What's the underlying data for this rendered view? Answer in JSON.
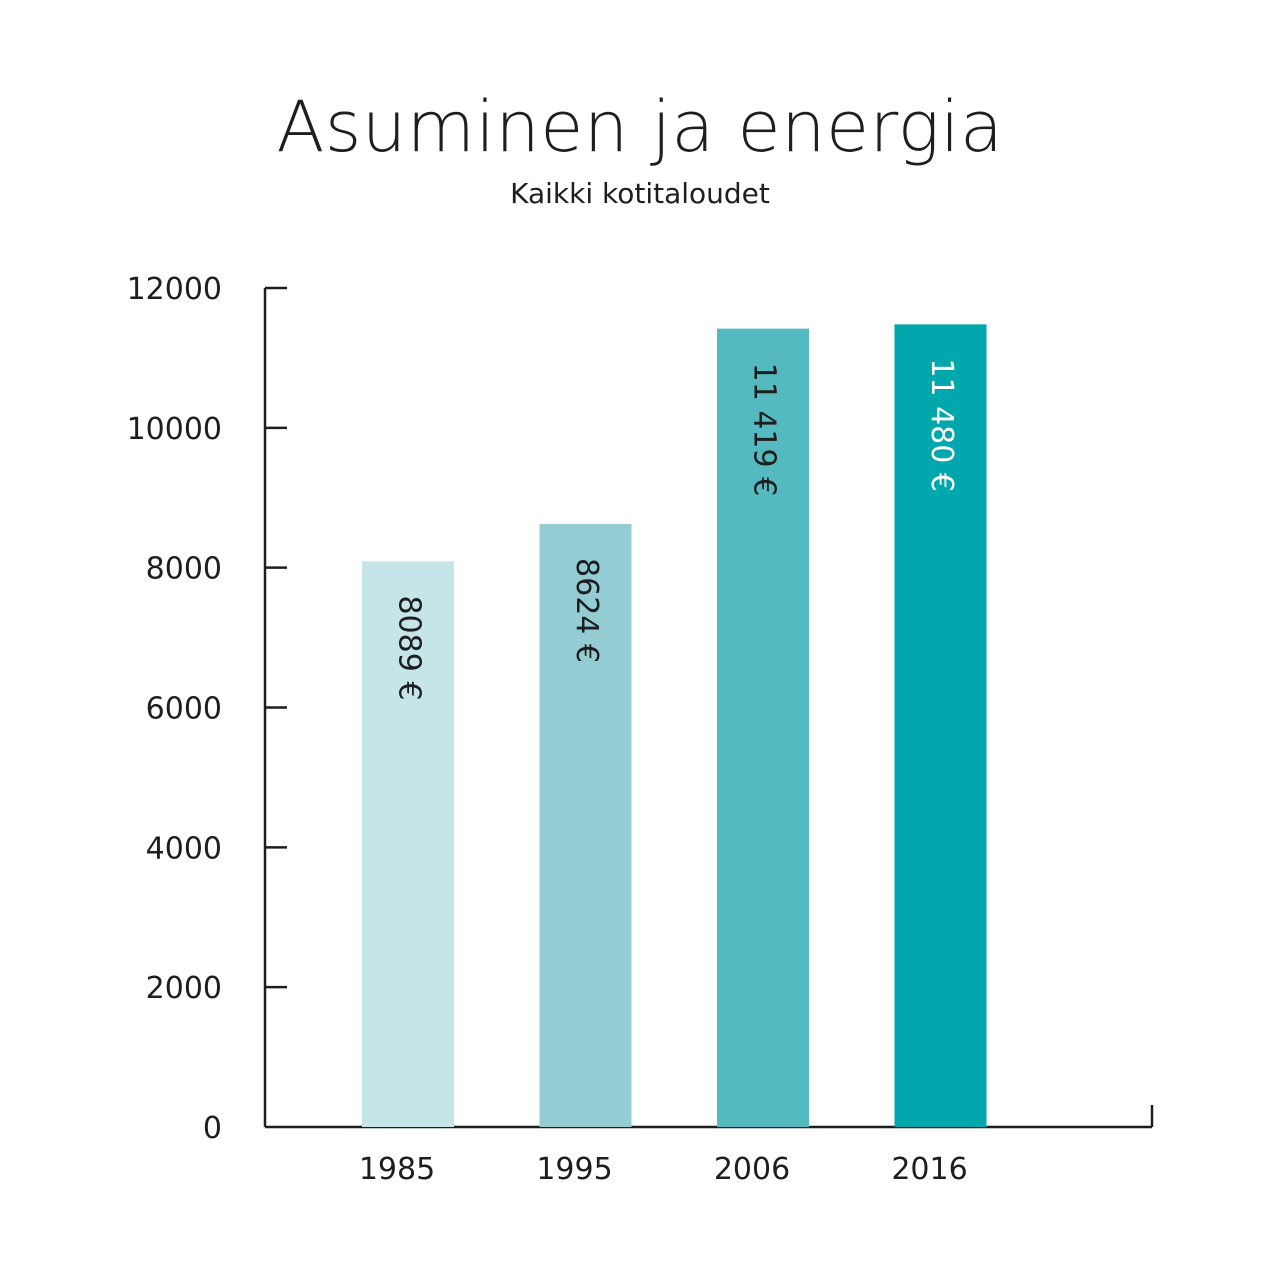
{
  "chart_data": {
    "type": "bar",
    "title": "Asuminen ja energia",
    "subtitle": "Kaikki kotitaloudet",
    "xlabel": "",
    "ylabel": "",
    "ylim": [
      0,
      12000
    ],
    "yticks": [
      0,
      2000,
      4000,
      6000,
      8000,
      10000,
      12000
    ],
    "ytick_labels": [
      "0",
      "2000",
      "4000",
      "6000",
      "8000",
      "10000",
      "12000"
    ],
    "categories": [
      "1985",
      "1995",
      "2006",
      "2016"
    ],
    "values": [
      8089,
      8624,
      11419,
      11480
    ],
    "data_labels": [
      "8089 €",
      "8624 €",
      "11 419 €",
      "11 480 €"
    ],
    "bar_colors": [
      "#c5e5e8",
      "#93cdd3",
      "#55b9c0",
      "#00a7ad"
    ],
    "label_colors": [
      "#1e1e1e",
      "#1e1e1e",
      "#1e1e1e",
      "#ffffff"
    ],
    "grid": false,
    "legend": "none"
  }
}
